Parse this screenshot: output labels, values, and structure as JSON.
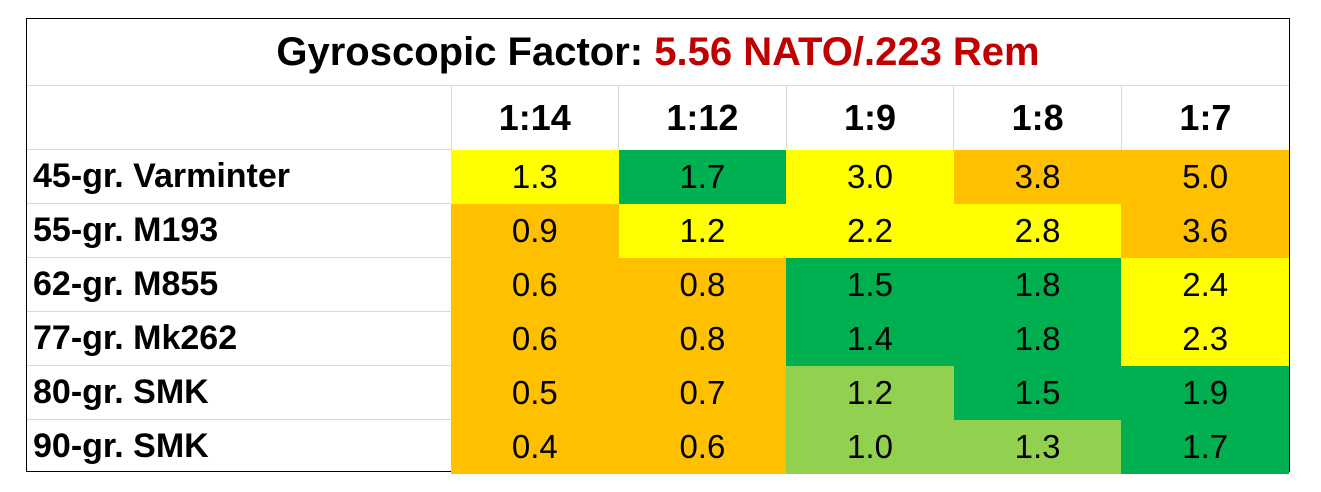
{
  "chart_data": {
    "type": "heatmap",
    "title": "Gyroscopic Factor:",
    "subtitle": "5.56 NATO/.223 Rem",
    "columns": [
      "1:14",
      "1:12",
      "1:9",
      "1:8",
      "1:7"
    ],
    "rows": [
      {
        "label": "45-gr. Varminter",
        "values": [
          "1.3",
          "1.7",
          "3.0",
          "3.8",
          "5.0"
        ],
        "colors": [
          "#ffff00",
          "#00b050",
          "#ffff00",
          "#ffc000",
          "#ffc000"
        ]
      },
      {
        "label": "55-gr. M193",
        "values": [
          "0.9",
          "1.2",
          "2.2",
          "2.8",
          "3.6"
        ],
        "colors": [
          "#ffc000",
          "#ffff00",
          "#ffff00",
          "#ffff00",
          "#ffc000"
        ]
      },
      {
        "label": "62-gr. M855",
        "values": [
          "0.6",
          "0.8",
          "1.5",
          "1.8",
          "2.4"
        ],
        "colors": [
          "#ffc000",
          "#ffc000",
          "#00b050",
          "#00b050",
          "#ffff00"
        ]
      },
      {
        "label": "77-gr. Mk262",
        "values": [
          "0.6",
          "0.8",
          "1.4",
          "1.8",
          "2.3"
        ],
        "colors": [
          "#ffc000",
          "#ffc000",
          "#00b050",
          "#00b050",
          "#ffff00"
        ]
      },
      {
        "label": "80-gr. SMK",
        "values": [
          "0.5",
          "0.7",
          "1.2",
          "1.5",
          "1.9"
        ],
        "colors": [
          "#ffc000",
          "#ffc000",
          "#92d050",
          "#00b050",
          "#00b050"
        ]
      },
      {
        "label": "90-gr. SMK",
        "values": [
          "0.4",
          "0.6",
          "1.0",
          "1.3",
          "1.7"
        ],
        "colors": [
          "#ffc000",
          "#ffc000",
          "#92d050",
          "#92d050",
          "#00b050"
        ]
      }
    ],
    "title_accent_color": "#c00000"
  }
}
